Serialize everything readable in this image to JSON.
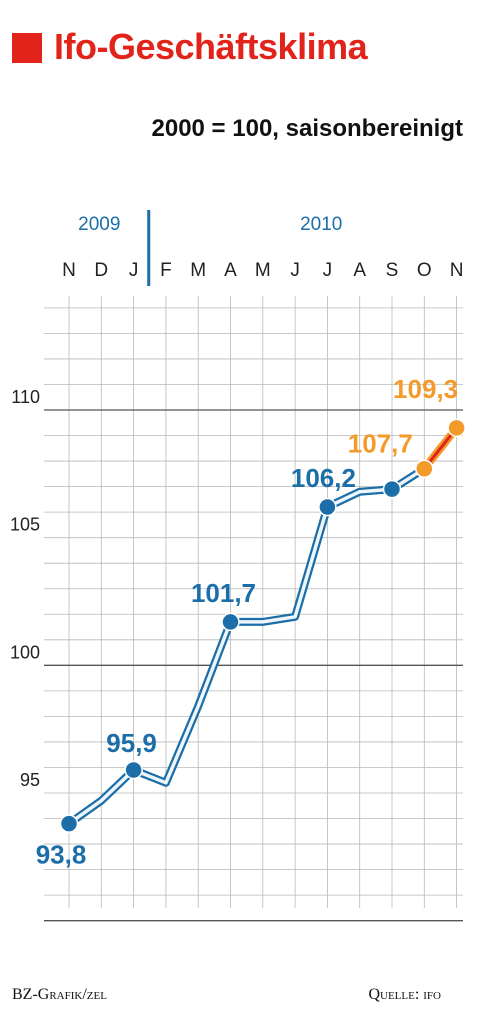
{
  "header": {
    "title": "Ifo-Geschäftsklima",
    "subtitle": "2000 = 100, saisonbereinigt"
  },
  "footer": {
    "credit": "BZ-Grafik/zel",
    "source": "Quelle: ifo"
  },
  "colors": {
    "accent": "#e2231a",
    "blue": "#1b6ea8",
    "orange": "#f39a2a",
    "line_fill": "#eef5fb",
    "grid": "#b8b8b8",
    "major_line": "#555555"
  },
  "chart_data": {
    "type": "line",
    "title": "Ifo-Geschäftsklima",
    "subtitle": "2000 = 100, saisonbereinigt",
    "years": [
      {
        "label": "2009",
        "start_index": 0
      },
      {
        "label": "2010",
        "start_index": 3
      }
    ],
    "categories": [
      "N",
      "D",
      "J",
      "F",
      "M",
      "A",
      "M",
      "J",
      "J",
      "A",
      "S",
      "O",
      "N"
    ],
    "values": [
      93.8,
      94.7,
      95.9,
      95.4,
      98.4,
      101.7,
      101.7,
      101.9,
      106.2,
      106.8,
      106.9,
      107.7,
      109.3
    ],
    "estimated_from_index": 11,
    "point_labels": [
      {
        "index": 0,
        "text": "93,8",
        "color": "blue"
      },
      {
        "index": 2,
        "text": "95,9",
        "color": "blue"
      },
      {
        "index": 5,
        "text": "101,7",
        "color": "blue"
      },
      {
        "index": 8,
        "text": "106,2",
        "color": "blue"
      },
      {
        "index": 11,
        "text": "107,7",
        "color": "orange"
      },
      {
        "index": 12,
        "text": "109,3",
        "color": "orange"
      }
    ],
    "marked_points": [
      0,
      2,
      5,
      8,
      10,
      11,
      12
    ],
    "y_ticks": [
      {
        "value": 95,
        "label": "95"
      },
      {
        "value": 100,
        "label": "100"
      },
      {
        "value": 105,
        "label": "105"
      },
      {
        "value": 110,
        "label": "110"
      }
    ],
    "ylim": [
      89.5,
      114
    ],
    "grid": true
  }
}
